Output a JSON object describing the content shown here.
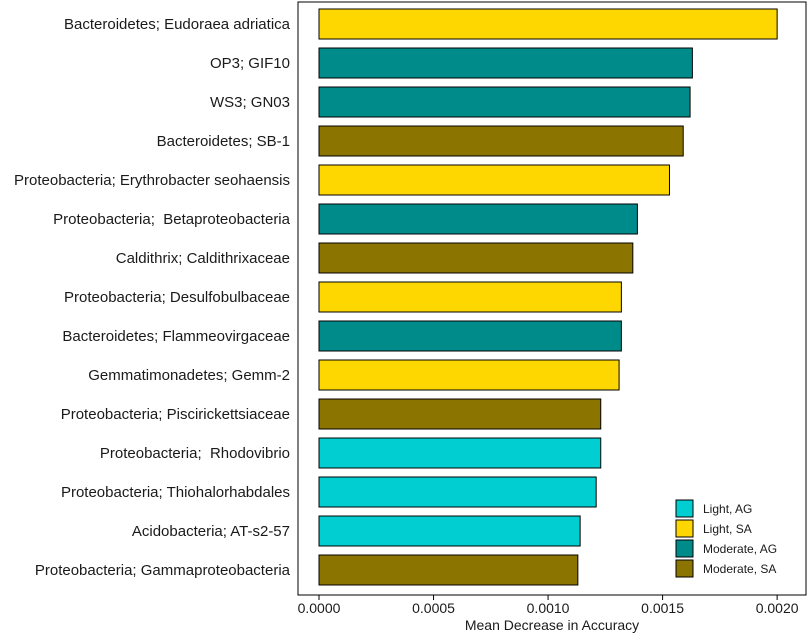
{
  "chart_data": {
    "type": "bar",
    "orientation": "horizontal",
    "title": "",
    "xlabel": "Mean Decrease in Accuracy",
    "ylabel": "",
    "xlim": [
      0,
      0.00203
    ],
    "xticks": [
      0,
      0.0005,
      0.001,
      0.0015,
      0.002
    ],
    "xtick_labels": [
      "0.0000",
      "0.0005",
      "0.0010",
      "0.0015",
      "0.0020"
    ],
    "grid": false,
    "legend_position": "bottom-right",
    "categories": [
      "Bacteroidetes; Eudoraea adriatica",
      "OP3; GIF10",
      "WS3; GN03",
      "Bacteroidetes; SB-1",
      "Proteobacteria; Erythrobacter seohaensis",
      "Proteobacteria;  Betaproteobacteria",
      "Caldithrix; Caldithrixaceae",
      "Proteobacteria; Desulfobulbaceae",
      "Bacteroidetes; Flammeovirgaceae",
      "Gemmatimonadetes; Gemm-2",
      "Proteobacteria; Piscirickettsiaceae",
      "Proteobacteria;  Rhodovibrio",
      "Proteobacteria; Thiohalorhabdales",
      "Acidobacteria; AT-s2-57",
      "Proteobacteria; Gammaproteobacteria"
    ],
    "values": [
      0.002,
      0.00163,
      0.00162,
      0.00159,
      0.00153,
      0.00139,
      0.00137,
      0.00132,
      0.00132,
      0.00131,
      0.00123,
      0.00123,
      0.00121,
      0.00114,
      0.00113
    ],
    "groups": [
      "Light, SA",
      "Moderate, AG",
      "Moderate, AG",
      "Moderate, SA",
      "Light, SA",
      "Moderate, AG",
      "Moderate, SA",
      "Light, SA",
      "Moderate, AG",
      "Light, SA",
      "Moderate, SA",
      "Light, AG",
      "Light, AG",
      "Light, AG",
      "Moderate, SA"
    ],
    "legend": [
      {
        "label": "Light, AG",
        "color": "#00CED1"
      },
      {
        "label": "Light, SA",
        "color": "#FFD700"
      },
      {
        "label": "Moderate, AG",
        "color": "#008B8B"
      },
      {
        "label": "Moderate, SA",
        "color": "#8B7500"
      }
    ]
  }
}
